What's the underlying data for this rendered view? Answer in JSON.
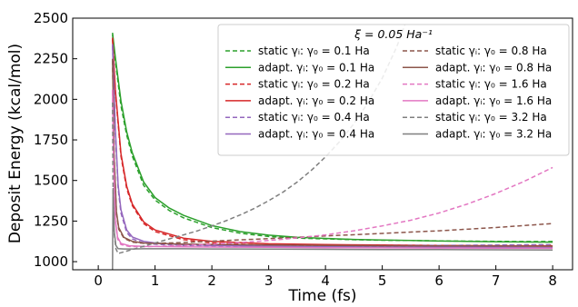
{
  "chart_data": {
    "type": "line",
    "xlabel": "Time (fs)",
    "ylabel": "Deposit Energy (kcal/mol)",
    "xlim": [
      -0.45,
      8.35
    ],
    "ylim": [
      950,
      2500
    ],
    "xticks": [
      0,
      1,
      2,
      3,
      4,
      5,
      6,
      7,
      8
    ],
    "yticks": [
      1000,
      1250,
      1500,
      1750,
      2000,
      2250,
      2500
    ],
    "xtick_labels": [
      "0",
      "1",
      "2",
      "3",
      "4",
      "5",
      "6",
      "7",
      "8"
    ],
    "ytick_labels": [
      "1000",
      "1250",
      "1500",
      "1750",
      "2000",
      "2250",
      "2500"
    ],
    "legend_title": "ξ = 0.05 Ha⁻¹",
    "legend_position": "upper-right",
    "series": [
      {
        "name": "static γᵢ: γ₀ = 0.1 Ha",
        "style": "dashed",
        "color": "#2ca02c",
        "x": [
          0.25,
          0.3,
          0.4,
          0.5,
          0.6,
          0.8,
          1.0,
          1.25,
          1.5,
          2.0,
          2.5,
          3.0,
          3.5,
          4.0,
          4.5,
          5.0,
          5.5,
          6.0,
          6.5,
          7.0,
          7.5,
          8.0
        ],
        "y": [
          2400,
          2240,
          1960,
          1780,
          1650,
          1470,
          1380,
          1315,
          1270,
          1210,
          1175,
          1155,
          1145,
          1140,
          1135,
          1132,
          1130,
          1128,
          1126,
          1125,
          1124,
          1124
        ]
      },
      {
        "name": "adapt. γᵢ: γ₀ = 0.1 Ha",
        "style": "solid",
        "color": "#2ca02c",
        "x": [
          0.25,
          0.3,
          0.4,
          0.5,
          0.6,
          0.8,
          1.0,
          1.25,
          1.5,
          2.0,
          2.5,
          3.0,
          3.5,
          4.0,
          4.5,
          5.0,
          5.5,
          6.0,
          6.5,
          7.0,
          7.5,
          8.0
        ],
        "y": [
          2410,
          2260,
          1990,
          1800,
          1670,
          1490,
          1395,
          1330,
          1285,
          1222,
          1185,
          1163,
          1150,
          1143,
          1137,
          1133,
          1130,
          1127,
          1125,
          1123,
          1121,
          1120
        ]
      },
      {
        "name": "static γᵢ: γ₀ = 0.2 Ha",
        "style": "dashed",
        "color": "#d62728",
        "x": [
          0.25,
          0.3,
          0.4,
          0.5,
          0.6,
          0.8,
          1.0,
          1.5,
          2.0,
          3.0,
          4.0,
          5.0,
          6.0,
          7.0,
          8.0
        ],
        "y": [
          2370,
          2050,
          1650,
          1450,
          1345,
          1235,
          1185,
          1135,
          1115,
          1100,
          1097,
          1097,
          1098,
          1100,
          1102
        ]
      },
      {
        "name": "adapt. γᵢ: γ₀ = 0.2 Ha",
        "style": "solid",
        "color": "#d62728",
        "x": [
          0.25,
          0.3,
          0.4,
          0.5,
          0.6,
          0.8,
          1.0,
          1.5,
          2.0,
          3.0,
          4.0,
          5.0,
          6.0,
          7.0,
          8.0
        ],
        "y": [
          2380,
          2060,
          1665,
          1465,
          1355,
          1245,
          1195,
          1145,
          1125,
          1110,
          1105,
          1102,
          1100,
          1098,
          1097
        ]
      },
      {
        "name": "static γᵢ: γ₀ = 0.4 Ha",
        "style": "dashed",
        "color": "#9467bd",
        "x": [
          0.25,
          0.3,
          0.35,
          0.4,
          0.5,
          0.6,
          0.8,
          1.0,
          1.5,
          2.0,
          3.0,
          4.0,
          5.0,
          6.0,
          7.0,
          8.0
        ],
        "y": [
          2330,
          1800,
          1450,
          1300,
          1180,
          1140,
          1115,
          1107,
          1100,
          1097,
          1096,
          1097,
          1098,
          1100,
          1102,
          1105
        ]
      },
      {
        "name": "adapt. γᵢ: γ₀ = 0.4 Ha",
        "style": "solid",
        "color": "#9467bd",
        "x": [
          0.25,
          0.3,
          0.35,
          0.4,
          0.5,
          0.6,
          0.8,
          1.0,
          1.5,
          2.0,
          3.0,
          4.0,
          5.0,
          6.0,
          7.0,
          8.0
        ],
        "y": [
          2340,
          1820,
          1470,
          1320,
          1195,
          1152,
          1125,
          1115,
          1105,
          1100,
          1095,
          1092,
          1090,
          1089,
          1088,
          1087
        ]
      },
      {
        "name": "static γᵢ: γ₀ = 0.8 Ha",
        "style": "dashed",
        "color": "#8c564b",
        "x": [
          0.25,
          0.28,
          0.32,
          0.36,
          0.45,
          0.6,
          0.8,
          1.0,
          1.5,
          2.0,
          3.0,
          4.0,
          5.0,
          6.0,
          7.0,
          8.0
        ],
        "y": [
          2240,
          1650,
          1300,
          1200,
          1145,
          1120,
          1113,
          1113,
          1118,
          1126,
          1142,
          1158,
          1174,
          1190,
          1210,
          1235
        ]
      },
      {
        "name": "adapt. γᵢ: γ₀ = 0.8 Ha",
        "style": "solid",
        "color": "#8c564b",
        "x": [
          0.25,
          0.28,
          0.32,
          0.36,
          0.45,
          0.6,
          0.8,
          1.0,
          1.5,
          2.0,
          3.0,
          4.0,
          5.0,
          6.0,
          7.0,
          8.0
        ],
        "y": [
          2250,
          1660,
          1310,
          1210,
          1150,
          1125,
          1115,
          1112,
          1108,
          1106,
          1103,
          1100,
          1098,
          1097,
          1096,
          1095
        ]
      },
      {
        "name": "static γᵢ: γ₀ = 1.6 Ha",
        "style": "dashed",
        "color": "#e377c2",
        "x": [
          0.25,
          0.27,
          0.3,
          0.34,
          0.4,
          0.55,
          0.8,
          1.0,
          1.5,
          2.0,
          2.5,
          3.0,
          3.5,
          4.0,
          4.5,
          5.0,
          5.5,
          6.0,
          6.5,
          7.0,
          7.5,
          8.0
        ],
        "y": [
          2050,
          1600,
          1250,
          1140,
          1105,
          1093,
          1092,
          1094,
          1100,
          1108,
          1118,
          1130,
          1146,
          1165,
          1190,
          1220,
          1255,
          1300,
          1355,
          1420,
          1495,
          1580
        ]
      },
      {
        "name": "adapt. γᵢ: γ₀ = 1.6 Ha",
        "style": "solid",
        "color": "#e377c2",
        "x": [
          0.25,
          0.27,
          0.3,
          0.34,
          0.4,
          0.55,
          0.8,
          1.0,
          1.5,
          2.0,
          3.0,
          4.0,
          5.0,
          6.0,
          7.0,
          8.0
        ],
        "y": [
          2060,
          1610,
          1260,
          1150,
          1112,
          1098,
          1094,
          1093,
          1091,
          1090,
          1088,
          1086,
          1085,
          1084,
          1083,
          1082
        ]
      },
      {
        "name": "static γᵢ: γ₀ = 3.2 Ha",
        "style": "dashed",
        "color": "#7f7f7f",
        "x": [
          0.25,
          0.26,
          0.28,
          0.31,
          0.35,
          0.45,
          0.6,
          0.8,
          1.0,
          1.25,
          1.5,
          1.75,
          2.0,
          2.25,
          2.5,
          2.75,
          3.0,
          3.25,
          3.5,
          3.75,
          4.0,
          4.25,
          4.5,
          4.75,
          5.0,
          5.25,
          5.4
        ],
        "y": [
          1980,
          1450,
          1180,
          1080,
          1050,
          1060,
          1075,
          1095,
          1115,
          1140,
          1165,
          1190,
          1220,
          1252,
          1288,
          1328,
          1375,
          1428,
          1490,
          1562,
          1645,
          1740,
          1850,
          1980,
          2130,
          2320,
          2460
        ]
      },
      {
        "name": "adapt. γᵢ: γ₀ = 3.2 Ha",
        "style": "solid",
        "color": "#7f7f7f",
        "x": [
          0.25,
          0.26,
          0.28,
          0.31,
          0.35,
          0.45,
          0.6,
          0.8,
          1.0,
          1.5,
          2.0,
          3.0,
          4.0,
          5.0,
          6.0,
          7.0,
          8.0
        ],
        "y": [
          950,
          1450,
          1190,
          1100,
          1080,
          1078,
          1078,
          1079,
          1079,
          1079,
          1078,
          1077,
          1076,
          1075,
          1074,
          1073,
          1072
        ]
      }
    ]
  }
}
